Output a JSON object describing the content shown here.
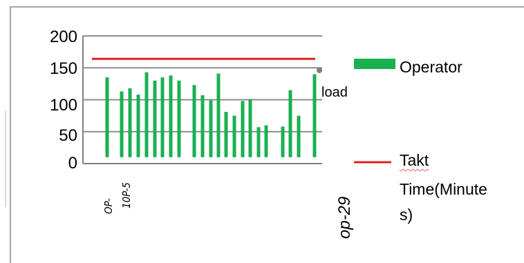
{
  "chart_data": {
    "type": "bar",
    "y_ticks": [
      "200",
      "150",
      "100",
      "50",
      "0"
    ],
    "ylim": [
      0,
      200
    ],
    "grid": true,
    "values": [
      135,
      113,
      118,
      108,
      143,
      130,
      135,
      138,
      130,
      123,
      107,
      99,
      141,
      81,
      75,
      98,
      101,
      57,
      60,
      58,
      115,
      75,
      140
    ],
    "category_labels": [
      "OP-",
      "10P-5",
      "op-29"
    ],
    "series": [
      {
        "name": "Operator",
        "color": "#19b150"
      },
      {
        "name": "Takt Time(Minutes)",
        "color": "#e02020",
        "value": 164
      }
    ],
    "annotation": "load",
    "legend": {
      "operator_label": "Operator",
      "takt_lines": [
        "Takt",
        "Time(Minute",
        "s)"
      ]
    },
    "legend_position": "right"
  }
}
